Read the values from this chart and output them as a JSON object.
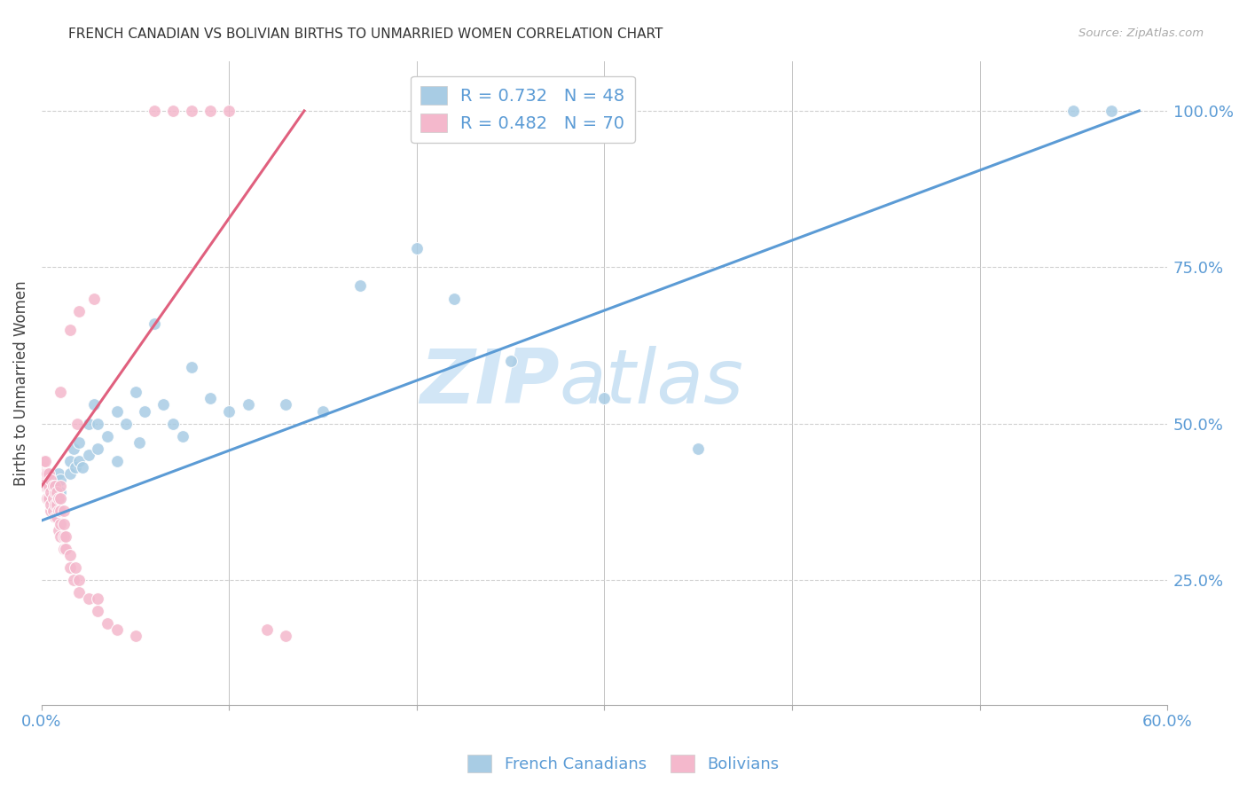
{
  "title": "FRENCH CANADIAN VS BOLIVIAN BIRTHS TO UNMARRIED WOMEN CORRELATION CHART",
  "source": "Source: ZipAtlas.com",
  "ylabel": "Births to Unmarried Women",
  "ytick_labels": [
    "100.0%",
    "75.0%",
    "50.0%",
    "25.0%"
  ],
  "ytick_values": [
    1.0,
    0.75,
    0.5,
    0.25
  ],
  "xlim": [
    0.0,
    0.6
  ],
  "ylim": [
    0.05,
    1.08
  ],
  "blue_color": "#a8cce4",
  "pink_color": "#f4b8cc",
  "blue_line_color": "#5b9bd5",
  "pink_line_color": "#e0607e",
  "axis_color": "#5b9bd5",
  "legend_blue_r": "R = 0.732",
  "legend_blue_n": "N = 48",
  "legend_pink_r": "R = 0.482",
  "legend_pink_n": "N = 70",
  "watermark_zip": "ZIP",
  "watermark_atlas": "atlas",
  "legend_label_blue": "French Canadians",
  "legend_label_pink": "Bolivians",
  "blue_scatter_x": [
    0.005,
    0.005,
    0.005,
    0.005,
    0.005,
    0.007,
    0.008,
    0.009,
    0.01,
    0.01,
    0.01,
    0.015,
    0.015,
    0.017,
    0.018,
    0.02,
    0.02,
    0.022,
    0.025,
    0.025,
    0.028,
    0.03,
    0.03,
    0.035,
    0.04,
    0.04,
    0.045,
    0.05,
    0.052,
    0.055,
    0.06,
    0.065,
    0.07,
    0.075,
    0.08,
    0.09,
    0.1,
    0.11,
    0.13,
    0.15,
    0.17,
    0.2,
    0.22,
    0.25,
    0.3,
    0.35,
    0.55,
    0.57
  ],
  "blue_scatter_y": [
    0.38,
    0.39,
    0.4,
    0.4,
    0.41,
    0.38,
    0.4,
    0.42,
    0.38,
    0.39,
    0.41,
    0.42,
    0.44,
    0.46,
    0.43,
    0.44,
    0.47,
    0.43,
    0.45,
    0.5,
    0.53,
    0.46,
    0.5,
    0.48,
    0.44,
    0.52,
    0.5,
    0.55,
    0.47,
    0.52,
    0.66,
    0.53,
    0.5,
    0.48,
    0.59,
    0.54,
    0.52,
    0.53,
    0.53,
    0.52,
    0.72,
    0.78,
    0.7,
    0.6,
    0.54,
    0.46,
    1.0,
    1.0
  ],
  "pink_scatter_x": [
    0.001,
    0.001,
    0.001,
    0.001,
    0.001,
    0.001,
    0.001,
    0.001,
    0.002,
    0.002,
    0.002,
    0.002,
    0.003,
    0.003,
    0.003,
    0.004,
    0.004,
    0.004,
    0.005,
    0.005,
    0.005,
    0.005,
    0.006,
    0.006,
    0.006,
    0.007,
    0.007,
    0.007,
    0.007,
    0.008,
    0.008,
    0.008,
    0.009,
    0.009,
    0.009,
    0.01,
    0.01,
    0.01,
    0.01,
    0.01,
    0.01,
    0.012,
    0.012,
    0.012,
    0.012,
    0.013,
    0.013,
    0.015,
    0.015,
    0.015,
    0.017,
    0.018,
    0.019,
    0.02,
    0.02,
    0.02,
    0.025,
    0.028,
    0.03,
    0.03,
    0.035,
    0.04,
    0.05,
    0.06,
    0.07,
    0.08,
    0.09,
    0.1,
    0.12,
    0.13
  ],
  "pink_scatter_y": [
    0.4,
    0.41,
    0.42,
    0.42,
    0.42,
    0.43,
    0.43,
    0.44,
    0.4,
    0.41,
    0.42,
    0.44,
    0.38,
    0.4,
    0.42,
    0.38,
    0.4,
    0.42,
    0.36,
    0.37,
    0.39,
    0.41,
    0.36,
    0.38,
    0.4,
    0.35,
    0.37,
    0.39,
    0.4,
    0.35,
    0.37,
    0.39,
    0.33,
    0.36,
    0.38,
    0.32,
    0.34,
    0.36,
    0.38,
    0.4,
    0.55,
    0.3,
    0.32,
    0.34,
    0.36,
    0.3,
    0.32,
    0.27,
    0.29,
    0.65,
    0.25,
    0.27,
    0.5,
    0.23,
    0.25,
    0.68,
    0.22,
    0.7,
    0.2,
    0.22,
    0.18,
    0.17,
    0.16,
    1.0,
    1.0,
    1.0,
    1.0,
    1.0,
    0.17,
    0.16
  ],
  "blue_trend_x": [
    0.0,
    0.585
  ],
  "blue_trend_y": [
    0.345,
    1.0
  ],
  "pink_trend_x": [
    0.0,
    0.14
  ],
  "pink_trend_y": [
    0.4,
    1.0
  ]
}
